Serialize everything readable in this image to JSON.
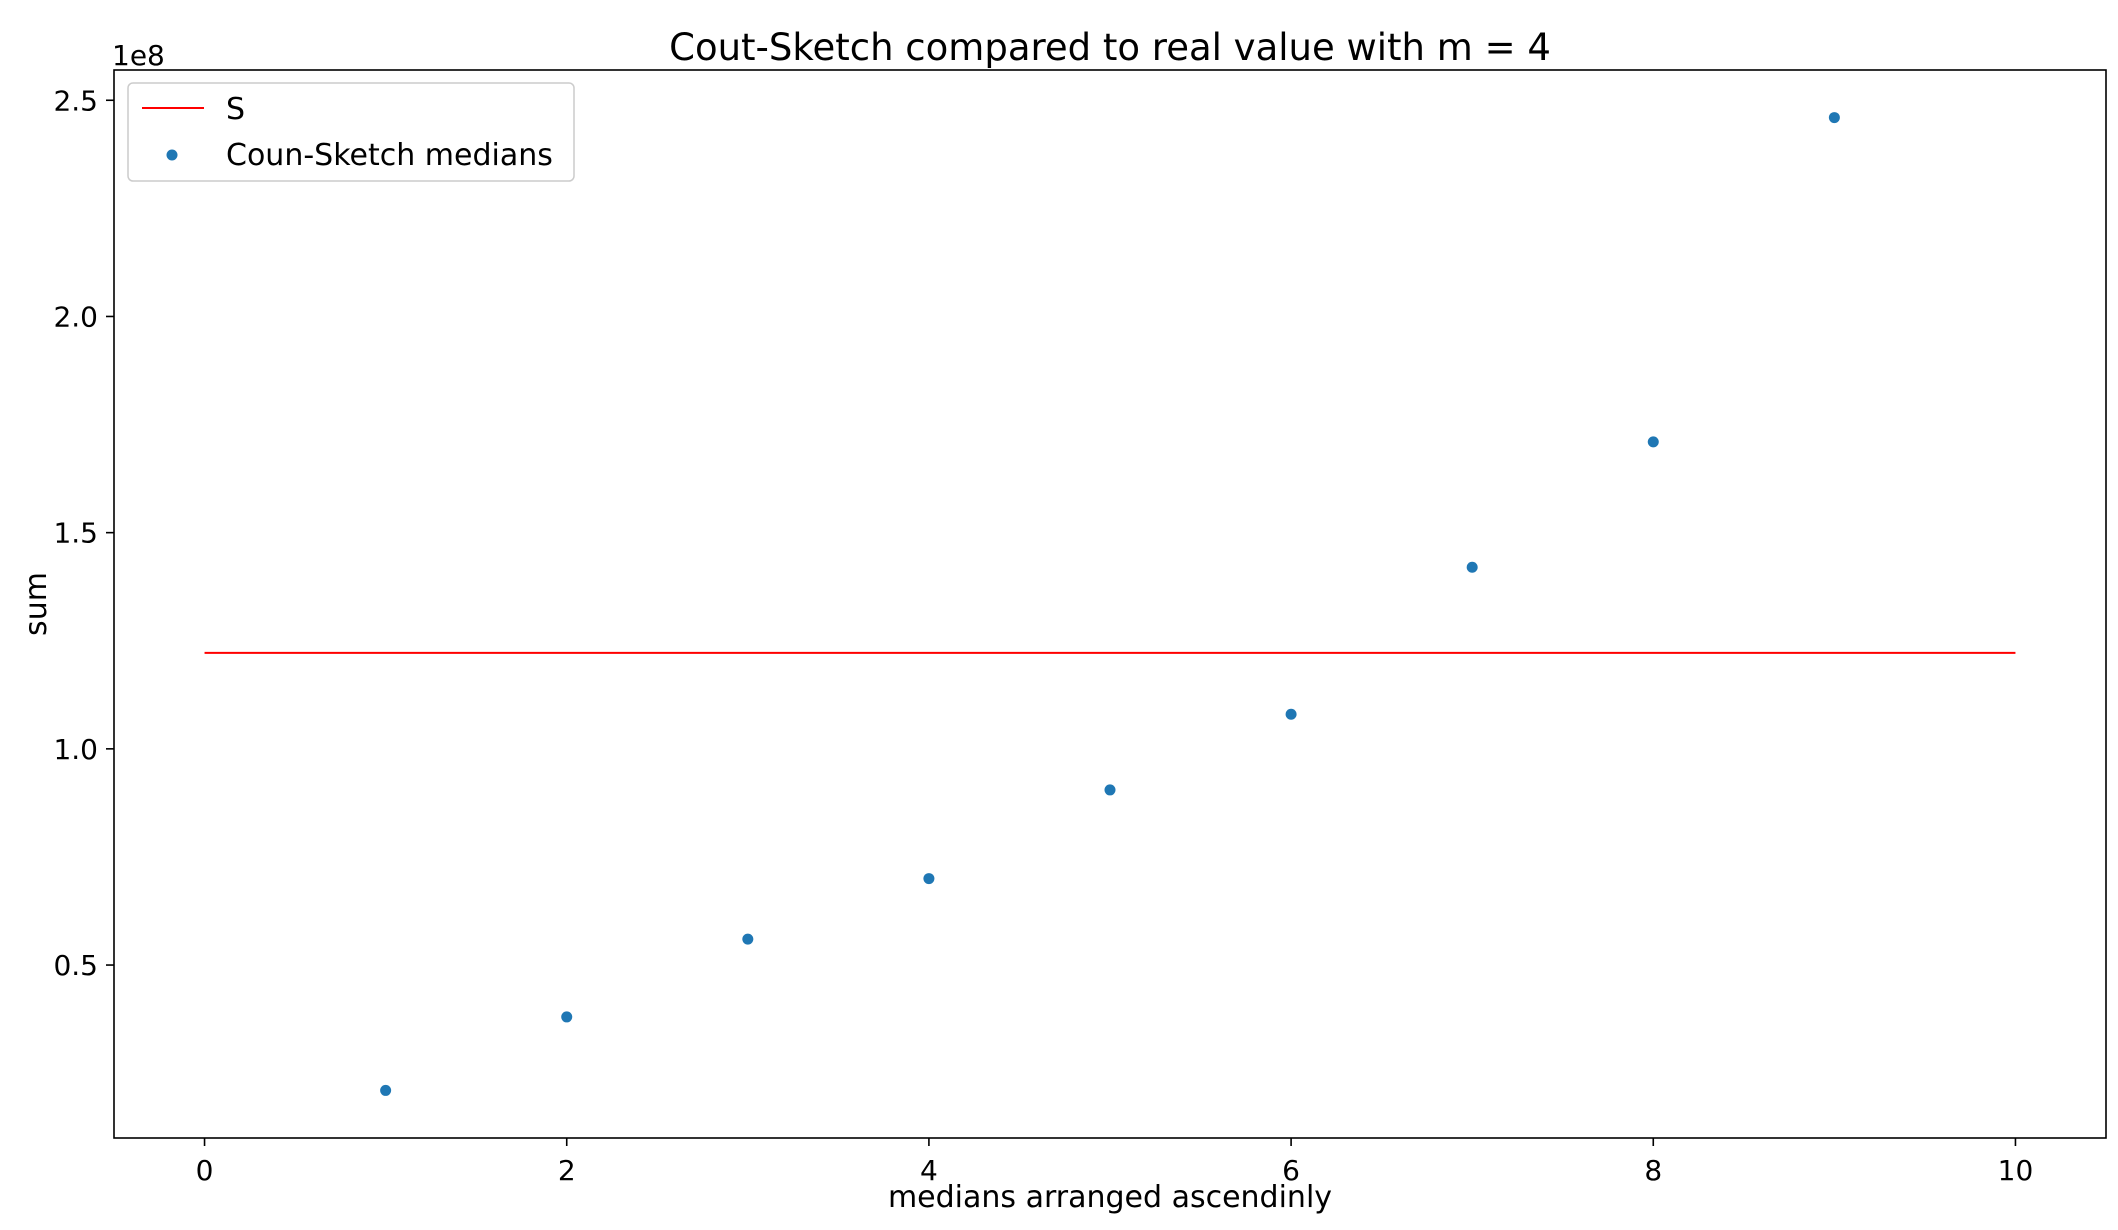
{
  "chart_data": {
    "type": "scatter",
    "title": "Cout-Sketch compared to real value with m = 4",
    "xlabel": "medians arranged ascendinly",
    "ylabel": "sum",
    "y_offset_label": "1e8",
    "xlim": [
      -0.5,
      10.5
    ],
    "ylim": [
      0.1,
      2.57
    ],
    "x_ticks": [
      0,
      2,
      4,
      6,
      8,
      10
    ],
    "x_tick_labels": [
      "0",
      "2",
      "4",
      "6",
      "8",
      "10"
    ],
    "y_ticks": [
      0.5,
      1.0,
      1.5,
      2.0,
      2.5
    ],
    "y_tick_labels": [
      "0.5",
      "1.0",
      "1.5",
      "2.0",
      "2.5"
    ],
    "grid": false,
    "legend_position": "top-left",
    "series": [
      {
        "name": "S",
        "kind": "line",
        "color": "#ff0000",
        "x": [
          0,
          10
        ],
        "y": [
          1.222,
          1.222
        ]
      },
      {
        "name": "Coun-Sketch medians",
        "kind": "scatter",
        "color": "#1f77b4",
        "x": [
          1,
          2,
          3,
          4,
          5,
          6,
          7,
          8,
          9
        ],
        "y": [
          0.21,
          0.38,
          0.56,
          0.7,
          0.905,
          1.08,
          1.42,
          1.71,
          2.46
        ]
      }
    ]
  }
}
